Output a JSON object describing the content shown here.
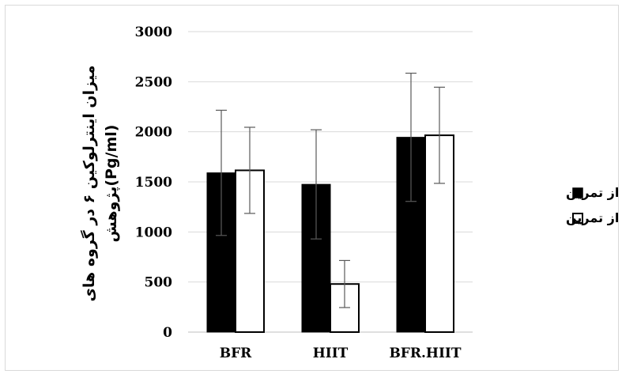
{
  "chart_data": {
    "type": "bar",
    "categories": [
      "BFR",
      "HIIT",
      "BFR.HIIT"
    ],
    "ylabel_line1": "میزان اینترلوکین ۶ در گروه های",
    "ylabel_line2": "پژوهش(Pg/ml)",
    "ylim": [
      0,
      3000
    ],
    "yticks": [
      "0",
      "500",
      "1000",
      "1500",
      "2000",
      "2500",
      "3000"
    ],
    "grid": true,
    "legend_position": "right",
    "series": [
      {
        "name": "قبل از تمرین",
        "color": "#000000",
        "values": [
          1590,
          1475,
          1945
        ],
        "error": [
          625,
          545,
          640
        ]
      },
      {
        "name": "بعد از تمرین",
        "color": "#ffffff",
        "values": [
          1615,
          480,
          1965
        ],
        "error": [
          430,
          235,
          480
        ]
      }
    ]
  }
}
